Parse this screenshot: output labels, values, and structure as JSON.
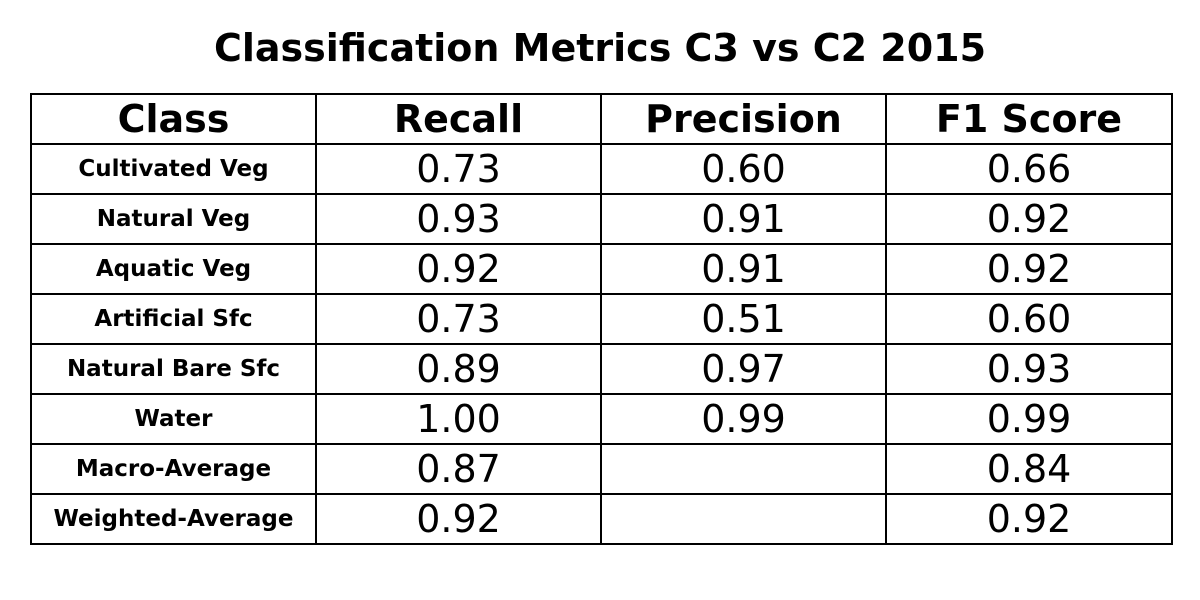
{
  "chart_data": {
    "type": "table",
    "title": "Classification Metrics C3 vs C2 2015",
    "columns": [
      "Class",
      "Recall",
      "Precision",
      "F1 Score"
    ],
    "rows": [
      [
        "Cultivated Veg",
        "0.73",
        "0.60",
        "0.66"
      ],
      [
        "Natural Veg",
        "0.93",
        "0.91",
        "0.92"
      ],
      [
        "Aquatic Veg",
        "0.92",
        "0.91",
        "0.92"
      ],
      [
        "Artificial Sfc",
        "0.73",
        "0.51",
        "0.60"
      ],
      [
        "Natural Bare Sfc",
        "0.89",
        "0.97",
        "0.93"
      ],
      [
        "Water",
        "1.00",
        "0.99",
        "0.99"
      ],
      [
        "Macro-Average",
        "0.87",
        "",
        "0.84"
      ],
      [
        "Weighted-Average",
        "0.92",
        "",
        "0.92"
      ]
    ]
  }
}
